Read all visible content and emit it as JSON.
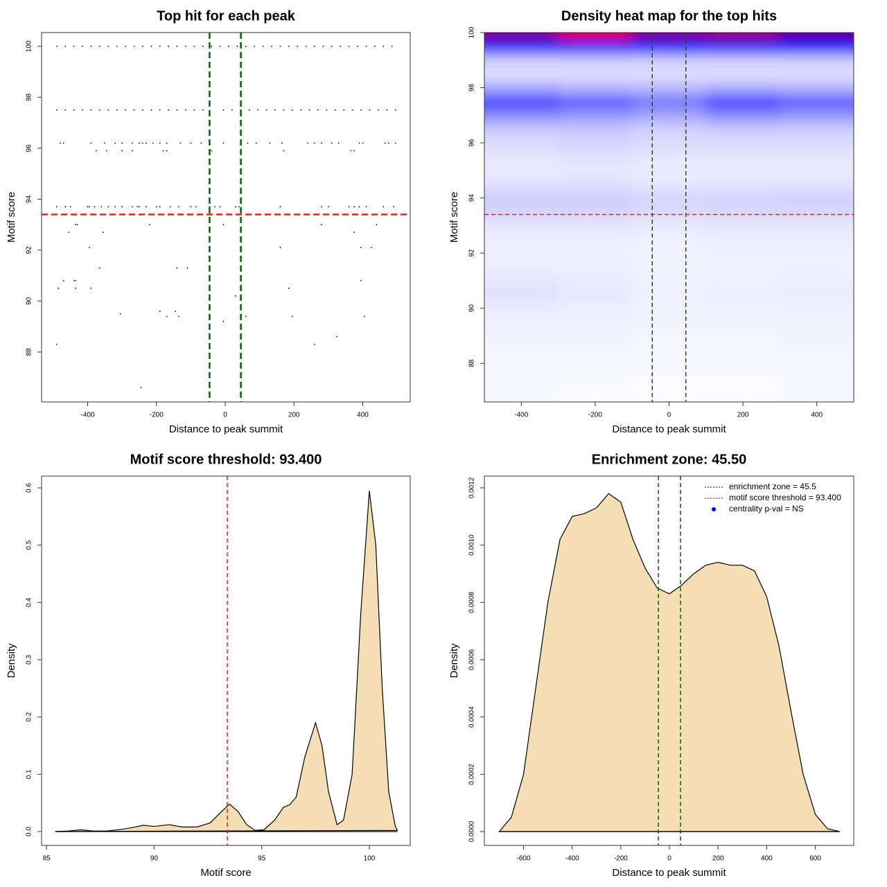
{
  "chart_data": [
    {
      "type": "scatter",
      "title": "Top hit for each peak",
      "x_label": "Distance to peak summit",
      "y_label": "Motif score",
      "color": "#000000",
      "x": [
        -490,
        -465,
        -440,
        -415,
        -390,
        -365,
        -340,
        -315,
        -290,
        -265,
        -240,
        -215,
        -190,
        -165,
        -140,
        -115,
        -90,
        -65,
        -40,
        -15,
        10,
        35,
        60,
        85,
        110,
        135,
        160,
        185,
        210,
        235,
        260,
        285,
        310,
        335,
        360,
        385,
        410,
        435,
        460,
        485,
        -490,
        -465,
        -440,
        -415,
        -390,
        -365,
        -340,
        -315,
        -290,
        -265,
        -240,
        -215,
        -190,
        -165,
        -140,
        -115,
        -90,
        -65,
        -5,
        20,
        45,
        70,
        95,
        120,
        145,
        170,
        195,
        220,
        245,
        270,
        295,
        320,
        345,
        370,
        395,
        420,
        445,
        470,
        495,
        -480,
        -470,
        -390,
        -350,
        -320,
        -300,
        -270,
        -250,
        -240,
        -230,
        -210,
        -190,
        -170,
        -130,
        -100,
        -70,
        -5,
        65,
        90,
        130,
        165,
        240,
        260,
        280,
        310,
        330,
        390,
        400,
        465,
        475,
        495,
        -375,
        -345,
        -300,
        -270,
        -180,
        -170,
        -40,
        170,
        365,
        375,
        -490,
        -465,
        -450,
        -400,
        -395,
        -380,
        -360,
        -340,
        -320,
        -300,
        -270,
        -255,
        -250,
        -230,
        -200,
        -190,
        -160,
        -135,
        -100,
        -85,
        -45,
        -30,
        -15,
        30,
        40,
        160,
        280,
        300,
        360,
        375,
        390,
        410,
        460,
        490,
        -435,
        -430,
        -220,
        -5,
        280,
        440,
        -455,
        -355,
        375,
        -395,
        160,
        395,
        425,
        -365,
        -140,
        -110,
        -470,
        -440,
        -435,
        395,
        -485,
        -435,
        -390,
        185,
        30,
        45,
        -190,
        -145,
        -305,
        -170,
        -135,
        60,
        195,
        405,
        -5,
        325,
        -490,
        260,
        -245
      ],
      "values": [
        100,
        100,
        100,
        100,
        100,
        100,
        100,
        100,
        100,
        100,
        100,
        100,
        100,
        100,
        100,
        100,
        100,
        100,
        100,
        100,
        100,
        100,
        100,
        100,
        100,
        100,
        100,
        100,
        100,
        100,
        100,
        100,
        100,
        100,
        100,
        100,
        100,
        100,
        100,
        100,
        97.5,
        97.5,
        97.5,
        97.5,
        97.5,
        97.5,
        97.5,
        97.5,
        97.5,
        97.5,
        97.5,
        97.5,
        97.5,
        97.5,
        97.5,
        97.5,
        97.5,
        97.5,
        97.5,
        97.5,
        97.5,
        97.5,
        97.5,
        97.5,
        97.5,
        97.5,
        97.5,
        97.5,
        97.5,
        97.5,
        97.5,
        97.5,
        97.5,
        97.5,
        97.5,
        97.5,
        97.5,
        97.5,
        97.5,
        96.2,
        96.2,
        96.2,
        96.2,
        96.2,
        96.2,
        96.2,
        96.2,
        96.2,
        96.2,
        96.2,
        96.2,
        96.2,
        96.2,
        96.2,
        96.2,
        96.2,
        96.2,
        96.2,
        96.2,
        96.2,
        96.2,
        96.2,
        96.2,
        96.2,
        96.2,
        96.2,
        96.2,
        96.2,
        96.2,
        96.2,
        95.9,
        95.9,
        95.9,
        95.9,
        95.9,
        95.9,
        95.9,
        95.9,
        95.9,
        95.9,
        93.7,
        93.7,
        93.7,
        93.7,
        93.7,
        93.7,
        93.7,
        93.7,
        93.7,
        93.7,
        93.7,
        93.7,
        93.7,
        93.7,
        93.7,
        93.7,
        93.7,
        93.7,
        93.7,
        93.7,
        93.7,
        93.7,
        93.7,
        93.7,
        93.7,
        93.7,
        93.7,
        93.7,
        93.7,
        93.7,
        93.7,
        93.7,
        93.7,
        93.7,
        93,
        93,
        93,
        93,
        93,
        93,
        92.7,
        92.7,
        92.7,
        92.1,
        92.1,
        92.1,
        92.1,
        91.3,
        91.3,
        91.3,
        90.8,
        90.8,
        90.8,
        90.8,
        90.5,
        90.5,
        90.5,
        90.5,
        90.2,
        90.2,
        89.6,
        89.6,
        89.5,
        89.4,
        89.4,
        89.4,
        89.4,
        89.4,
        89.2,
        88.6,
        88.3,
        88.3,
        86.6
      ],
      "xlim": [
        -534,
        538
      ],
      "ylim": [
        86.04,
        100.54
      ],
      "xticks": [
        -400,
        -200,
        0,
        200,
        400
      ],
      "yticks": [
        88,
        90,
        92,
        94,
        96,
        98,
        100
      ],
      "vlines": [
        -45.5,
        45.5
      ],
      "vline_color": "#006400",
      "hlines": [
        93.4
      ],
      "hline_color": "#dd2222"
    },
    {
      "type": "heatmap",
      "title": "Density heat map for the top hits",
      "x_label": "Distance to peak summit",
      "y_label": "Motif score",
      "x": [
        -400,
        -200,
        0,
        200,
        400
      ],
      "y": [
        87,
        87.5,
        88,
        88.5,
        89,
        89.5,
        90,
        90.5,
        91,
        91.5,
        92,
        92.5,
        93,
        93.5,
        94,
        94.5,
        95,
        95.5,
        96,
        96.5,
        97,
        97.5,
        98,
        98.5,
        99,
        99.5,
        100
      ],
      "z": [
        [
          0.03,
          0.02,
          0.02,
          0.02,
          0.03
        ],
        [
          0.03,
          0.03,
          0.02,
          0.02,
          0.03
        ],
        [
          0.04,
          0.03,
          0.03,
          0.03,
          0.04
        ],
        [
          0.04,
          0.04,
          0.03,
          0.03,
          0.04
        ],
        [
          0.05,
          0.05,
          0.04,
          0.04,
          0.05
        ],
        [
          0.06,
          0.06,
          0.05,
          0.05,
          0.05
        ],
        [
          0.08,
          0.07,
          0.05,
          0.06,
          0.06
        ],
        [
          0.12,
          0.09,
          0.06,
          0.07,
          0.08
        ],
        [
          0.1,
          0.08,
          0.06,
          0.06,
          0.07
        ],
        [
          0.07,
          0.07,
          0.05,
          0.05,
          0.06
        ],
        [
          0.06,
          0.06,
          0.05,
          0.06,
          0.06
        ],
        [
          0.07,
          0.07,
          0.06,
          0.07,
          0.07
        ],
        [
          0.1,
          0.1,
          0.09,
          0.1,
          0.1
        ],
        [
          0.16,
          0.16,
          0.14,
          0.15,
          0.15
        ],
        [
          0.2,
          0.2,
          0.17,
          0.18,
          0.19
        ],
        [
          0.12,
          0.12,
          0.1,
          0.11,
          0.11
        ],
        [
          0.08,
          0.09,
          0.08,
          0.08,
          0.08
        ],
        [
          0.1,
          0.12,
          0.1,
          0.1,
          0.1
        ],
        [
          0.14,
          0.17,
          0.14,
          0.14,
          0.14
        ],
        [
          0.2,
          0.22,
          0.18,
          0.2,
          0.2
        ],
        [
          0.45,
          0.4,
          0.35,
          0.45,
          0.4
        ],
        [
          0.75,
          0.65,
          0.55,
          0.75,
          0.65
        ],
        [
          0.35,
          0.3,
          0.28,
          0.33,
          0.3
        ],
        [
          0.12,
          0.12,
          0.12,
          0.12,
          0.12
        ],
        [
          0.2,
          0.2,
          0.2,
          0.2,
          0.2
        ],
        [
          0.9,
          0.95,
          0.9,
          0.9,
          0.95
        ],
        [
          1.5,
          1.9,
          1.5,
          1.6,
          1.4
        ]
      ],
      "zlim": [
        0,
        2
      ],
      "colors": [
        "#ffffff",
        "#0000ff",
        "#ff0000"
      ],
      "xlim": [
        -500,
        500
      ],
      "ylim": [
        86.6,
        100
      ],
      "xticks": [
        -400,
        -200,
        0,
        200,
        400
      ],
      "yticks": [
        88,
        90,
        92,
        94,
        96,
        98,
        100
      ],
      "vlines": [
        -45.5,
        45.5
      ],
      "vline_color": "#006400",
      "hlines": [
        93.4
      ],
      "hline_color": "#dd2222"
    },
    {
      "type": "area",
      "title": "Motif score threshold: 93.400",
      "x_label": "Motif score",
      "y_label": "Density",
      "color": "#f5deb3",
      "x": [
        85.4,
        86,
        86.6,
        87.2,
        87.8,
        88.5,
        89,
        89.5,
        90,
        90.7,
        91.3,
        92,
        92.6,
        93,
        93.5,
        93.9,
        94.3,
        94.7,
        95.1,
        95.6,
        96,
        96.3,
        96.6,
        97,
        97.5,
        97.8,
        98.1,
        98.5,
        98.8,
        99.2,
        99.6,
        100,
        100.3,
        100.6,
        100.9,
        101.2,
        101.3
      ],
      "values": [
        0,
        0.001,
        0.003,
        0.001,
        0.001,
        0.004,
        0.007,
        0.011,
        0.009,
        0.012,
        0.008,
        0.008,
        0.015,
        0.03,
        0.048,
        0.035,
        0.012,
        0.002,
        0.003,
        0.02,
        0.042,
        0.047,
        0.06,
        0.13,
        0.19,
        0.15,
        0.07,
        0.012,
        0.02,
        0.1,
        0.38,
        0.595,
        0.5,
        0.25,
        0.07,
        0.01,
        0.002
      ],
      "xlim": [
        84.77,
        101.9
      ],
      "ylim": [
        -0.0242,
        0.6206
      ],
      "xticks": [
        85,
        90,
        95,
        100
      ],
      "yticks": [
        {
          "value": 0,
          "label": "0.0"
        },
        0.1,
        0.2,
        0.3,
        0.4,
        0.5,
        0.6
      ],
      "vlines": [
        93.4
      ],
      "vline_color": "#dd2222"
    },
    {
      "type": "area",
      "title": "Enrichment zone: 45.50",
      "x_label": "Distance to peak summit",
      "y_label": "Density",
      "color": "#f5deb3",
      "x": [
        -700,
        -650,
        -600,
        -550,
        -500,
        -450,
        -400,
        -350,
        -300,
        -250,
        -200,
        -150,
        -100,
        -50,
        0,
        50,
        100,
        150,
        200,
        250,
        300,
        350,
        400,
        450,
        500,
        550,
        600,
        650,
        700
      ],
      "values": [
        0,
        5e-05,
        0.0002,
        0.0005,
        0.0008,
        0.00102,
        0.0011,
        0.00111,
        0.00113,
        0.00118,
        0.00115,
        0.00102,
        0.00092,
        0.00085,
        0.00083,
        0.00086,
        0.0009,
        0.00093,
        0.00094,
        0.00093,
        0.00093,
        0.00091,
        0.00082,
        0.00065,
        0.00042,
        0.0002,
        6e-05,
        1e-05,
        0
      ],
      "xlim": [
        -761,
        758
      ],
      "ylim": [
        -4.84e-05,
        0.001241
      ],
      "xticks": [
        -600,
        -400,
        -200,
        0,
        200,
        400,
        600
      ],
      "yticks": [
        {
          "value": 0,
          "label": "0.0000"
        },
        {
          "value": 0.0002,
          "label": "0.0002"
        },
        {
          "value": 0.0004,
          "label": "0.0004"
        },
        {
          "value": 0.0006,
          "label": "0.0006"
        },
        {
          "value": 0.0008,
          "label": "0.0008"
        },
        {
          "value": 0.001,
          "label": "0.0010"
        },
        {
          "value": 0.0012,
          "label": "0.0012"
        }
      ],
      "vlines": [
        -45.5,
        45.5
      ],
      "vline_color": "#006400",
      "legend": [
        {
          "text": "enrichment zone = 45.5",
          "color": "#006400",
          "marker": "line"
        },
        {
          "text": "motif score threshold = 93.400",
          "color": "#dd2222",
          "marker": "line"
        },
        {
          "text": "centrality p-val = NS",
          "color": "#0000ff",
          "marker": "point"
        }
      ]
    }
  ]
}
